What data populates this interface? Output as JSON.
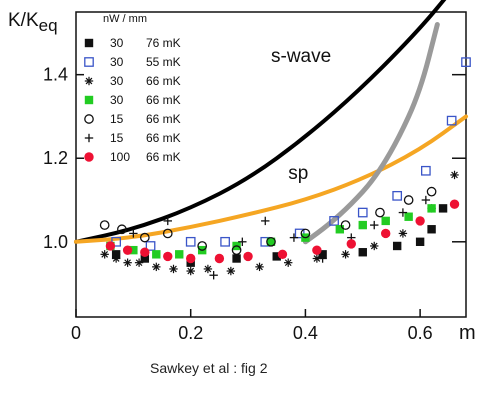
{
  "chart_data": {
    "type": "scatter",
    "title": "",
    "ylabel": "K/K",
    "ylabel_sub": "eq",
    "xlabel_right": "m",
    "xlim": [
      0,
      0.68
    ],
    "ylim": [
      0.82,
      1.55
    ],
    "x_ticks": [
      {
        "v": 0,
        "label": "0"
      },
      {
        "v": 0.2,
        "label": "0.2"
      },
      {
        "v": 0.4,
        "label": "0.4"
      },
      {
        "v": 0.6,
        "label": "0.6"
      }
    ],
    "y_ticks": [
      {
        "v": 1.0,
        "label": "1.0"
      },
      {
        "v": 1.2,
        "label": "1.2"
      },
      {
        "v": 1.4,
        "label": "1.4"
      }
    ],
    "legend": {
      "header": "nW / mm",
      "entries": [
        {
          "marker": "filled-square",
          "color": "#111111",
          "power": "30",
          "temp": "76 mK"
        },
        {
          "marker": "open-square",
          "color": "#3a55c8",
          "power": "30",
          "temp": "55 mK"
        },
        {
          "marker": "asterisk",
          "color": "#111111",
          "power": "30",
          "temp": "66 mK"
        },
        {
          "marker": "filled-square",
          "color": "#22cc22",
          "power": "30",
          "temp": "66 mK"
        },
        {
          "marker": "open-circle",
          "color": "#111111",
          "power": "15",
          "temp": "66 mK"
        },
        {
          "marker": "plus",
          "color": "#111111",
          "power": "15",
          "temp": "66 mK"
        },
        {
          "marker": "filled-circle",
          "color": "#ee1133",
          "power": "100",
          "temp": "66 mK"
        }
      ]
    },
    "curves": [
      {
        "name": "s-wave",
        "color": "#000000",
        "width": 4,
        "x": [
          0,
          0.1,
          0.2,
          0.3,
          0.4,
          0.5,
          0.6,
          0.66
        ],
        "y": [
          1.0,
          1.03,
          1.08,
          1.15,
          1.25,
          1.37,
          1.51,
          1.61
        ]
      },
      {
        "name": "sp",
        "color": "#f5a623",
        "width": 4,
        "x": [
          0,
          0.1,
          0.2,
          0.3,
          0.4,
          0.5,
          0.6,
          0.68
        ],
        "y": [
          1.0,
          1.01,
          1.035,
          1.065,
          1.1,
          1.15,
          1.22,
          1.3
        ]
      },
      {
        "name": "",
        "color": "#9a9a9a",
        "width": 5,
        "x": [
          0.4,
          0.44,
          0.48,
          0.52,
          0.56,
          0.6,
          0.63
        ],
        "y": [
          1.0,
          1.04,
          1.09,
          1.15,
          1.24,
          1.36,
          1.52
        ]
      }
    ],
    "curve_labels": [
      {
        "text": "s-wave",
        "x": 0.34,
        "y": 1.43
      },
      {
        "text": "sp",
        "x": 0.37,
        "y": 1.15
      }
    ],
    "series": [
      {
        "marker": "filled-square",
        "color": "#111111",
        "x": [
          0.07,
          0.12,
          0.2,
          0.28,
          0.35,
          0.43,
          0.5,
          0.56,
          0.6,
          0.62,
          0.64
        ],
        "y": [
          0.97,
          0.96,
          0.95,
          0.96,
          0.965,
          0.97,
          0.975,
          0.99,
          1.0,
          1.03,
          1.08
        ]
      },
      {
        "marker": "open-square",
        "color": "#3a55c8",
        "x": [
          0.07,
          0.13,
          0.2,
          0.26,
          0.33,
          0.39,
          0.45,
          0.5,
          0.56,
          0.61,
          0.655,
          0.68
        ],
        "y": [
          1.0,
          0.99,
          1.0,
          1.0,
          1.0,
          1.02,
          1.05,
          1.07,
          1.11,
          1.17,
          1.29,
          1.43
        ]
      },
      {
        "marker": "asterisk",
        "color": "#111111",
        "x": [
          0.05,
          0.07,
          0.09,
          0.11,
          0.14,
          0.17,
          0.2,
          0.23,
          0.27,
          0.32,
          0.37,
          0.42,
          0.47,
          0.52,
          0.57,
          0.62,
          0.66
        ],
        "y": [
          0.97,
          0.96,
          0.95,
          0.95,
          0.94,
          0.935,
          0.93,
          0.935,
          0.93,
          0.94,
          0.95,
          0.96,
          0.97,
          0.99,
          1.02,
          1.08,
          1.16
        ]
      },
      {
        "marker": "filled-square",
        "color": "#22cc22",
        "x": [
          0.06,
          0.1,
          0.14,
          0.18,
          0.22,
          0.28,
          0.34,
          0.4,
          0.46,
          0.5,
          0.54,
          0.58,
          0.62
        ],
        "y": [
          0.99,
          0.98,
          0.97,
          0.97,
          0.98,
          0.99,
          1.0,
          1.01,
          1.03,
          1.04,
          1.05,
          1.06,
          1.08
        ]
      },
      {
        "marker": "open-circle",
        "color": "#111111",
        "x": [
          0.05,
          0.08,
          0.12,
          0.16,
          0.22,
          0.28,
          0.34,
          0.4,
          0.47,
          0.53,
          0.58,
          0.62
        ],
        "y": [
          1.04,
          1.03,
          1.01,
          1.02,
          0.99,
          0.98,
          1.0,
          1.02,
          1.04,
          1.07,
          1.1,
          1.12
        ]
      },
      {
        "marker": "plus",
        "color": "#111111",
        "x": [
          0.1,
          0.16,
          0.24,
          0.29,
          0.33,
          0.38,
          0.43,
          0.48,
          0.52,
          0.57,
          0.61
        ],
        "y": [
          1.02,
          1.05,
          0.92,
          1.0,
          1.05,
          1.01,
          0.96,
          1.01,
          1.04,
          1.07,
          1.1
        ]
      },
      {
        "marker": "filled-circle",
        "color": "#ee1133",
        "x": [
          0.06,
          0.09,
          0.12,
          0.16,
          0.2,
          0.25,
          0.3,
          0.36,
          0.42,
          0.48,
          0.54,
          0.6,
          0.66
        ],
        "y": [
          0.99,
          0.98,
          0.975,
          0.965,
          0.96,
          0.96,
          0.965,
          0.97,
          0.98,
          0.995,
          1.02,
          1.05,
          1.09
        ]
      }
    ],
    "caption": "Sawkey et al : fig 2"
  }
}
